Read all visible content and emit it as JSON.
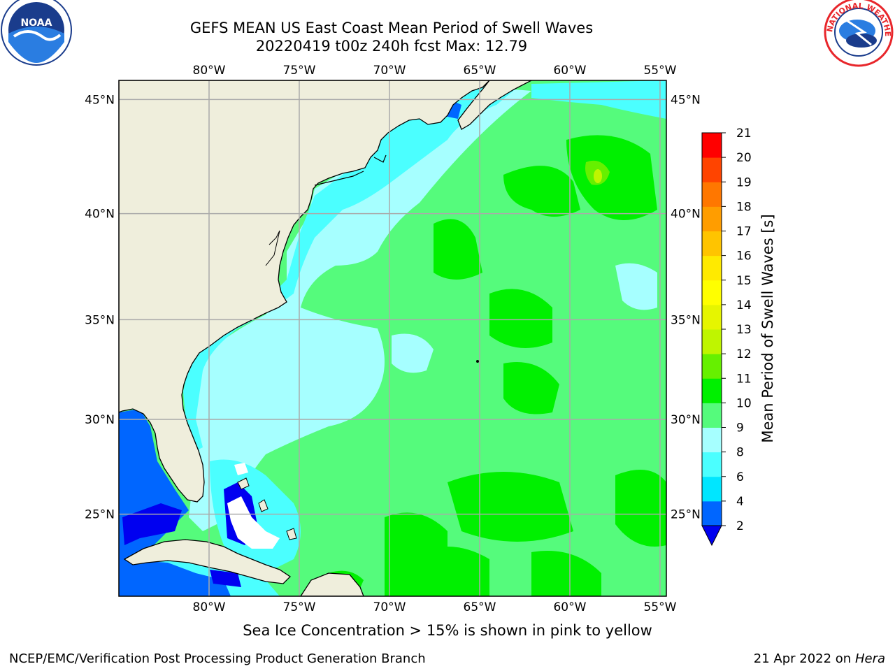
{
  "header": {
    "title_line1": "GEFS MEAN US East Coast Mean Period of Swell Waves",
    "title_line2": "20220419 t00z 240h fcst   Max: 12.79"
  },
  "logos": {
    "left": {
      "name": "NOAA",
      "label": "NOAA"
    },
    "right": {
      "name": "National Weather Service",
      "label": "NATIONAL WEATHER SERVICE"
    }
  },
  "map": {
    "lon_labels": [
      "80°W",
      "75°W",
      "70°W",
      "65°W",
      "60°W",
      "55°W"
    ],
    "lat_labels": [
      "45°N",
      "40°N",
      "35°N",
      "30°N",
      "25°N"
    ],
    "lon_values": [
      -80,
      -75,
      -70,
      -65,
      -60,
      -55
    ],
    "lat_values": [
      45,
      40,
      35,
      30,
      25
    ],
    "colors": {
      "land": "#efeedc",
      "grid": "#aaaaaa",
      "ocean_base": "#55fb7c"
    }
  },
  "colorbar": {
    "label": "Mean Period of Swell Waves [s]",
    "ticks": [
      "2",
      "4",
      "6",
      "8",
      "9",
      "10",
      "11",
      "12",
      "13",
      "14",
      "15",
      "16",
      "17",
      "18",
      "19",
      "20",
      "21"
    ],
    "colors": [
      "#0066ff",
      "#00e6ff",
      "#4bffff",
      "#a6ffff",
      "#55fb7c",
      "#00f000",
      "#66f000",
      "#bff500",
      "#e6f500",
      "#ffff00",
      "#ffea00",
      "#ffc400",
      "#ff9d00",
      "#ff7700",
      "#ff4400",
      "#ff0000"
    ],
    "under_color": "#0000f0"
  },
  "footer": {
    "note": "Sea Ice Concentration > 15% is shown in pink to yellow",
    "left": "NCEP/EMC/Verification Post Processing Product Generation Branch",
    "date": "21 Apr 2022 on ",
    "host": "Hera"
  }
}
